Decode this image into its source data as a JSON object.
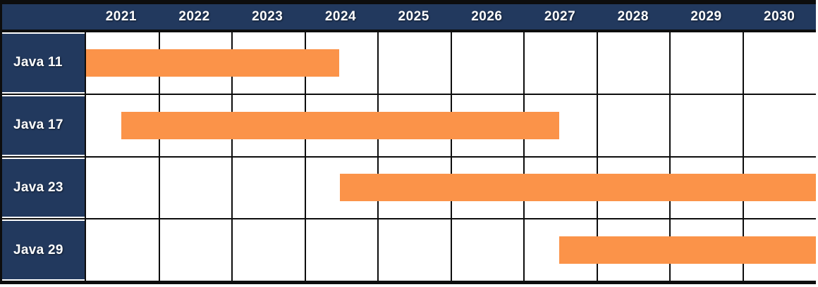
{
  "chart_data": {
    "type": "bar",
    "subtype": "gantt-timeline",
    "categories": [
      "2021",
      "2022",
      "2023",
      "2024",
      "2025",
      "2026",
      "2027",
      "2028",
      "2029",
      "2030"
    ],
    "axis": {
      "start": 2021,
      "end": 2031,
      "unit": "year",
      "tick_label_position": "top",
      "grid": "on"
    },
    "rows": [
      {
        "label": "Java 11",
        "bar": {
          "start": 2021.0,
          "end": 2024.47
        }
      },
      {
        "label": "Java 17",
        "bar": {
          "start": 2021.48,
          "end": 2027.48
        }
      },
      {
        "label": "Java 23",
        "bar": {
          "start": 2024.48,
          "end": 2031.0
        }
      },
      {
        "label": "Java 29",
        "bar": {
          "start": 2027.48,
          "end": 2031.0
        }
      }
    ],
    "colors": {
      "bar": "#FB9349",
      "header_bg": "#22395E",
      "row_label_bg": "#22395E",
      "header_text": "#FFFFFF",
      "row_label_text": "#FFFFFF",
      "grid_line": "#0D0D0D",
      "cell_bg": "#FFFFFF"
    }
  }
}
